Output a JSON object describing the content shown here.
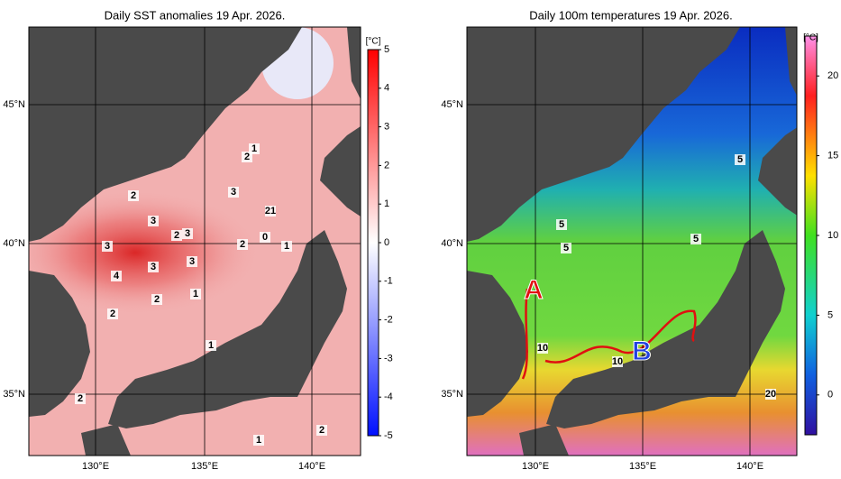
{
  "panels": [
    {
      "title": "Daily SST anomalies 19 Apr. 2026.",
      "lat_labels": [
        "45°N",
        "40°N",
        "35°N"
      ],
      "lon_labels": [
        "130°E",
        "135°E",
        "140°E"
      ],
      "colorbar": {
        "unit": "[°C]",
        "range": [
          -5,
          5
        ],
        "ticks": [
          5,
          4,
          3,
          2,
          1,
          0,
          -1,
          -2,
          -3,
          -4,
          -5
        ]
      },
      "contour_labels": [
        "1",
        "2",
        "2",
        "3",
        "21",
        "3",
        "2",
        "3",
        "3",
        "2",
        "0",
        "1",
        "4",
        "3",
        "3",
        "1",
        "2",
        "2",
        "1",
        "2",
        "2",
        "1"
      ]
    },
    {
      "title": "Daily 100m temperatures 19 Apr. 2026.",
      "lat_labels": [
        "45°N",
        "40°N",
        "35°N"
      ],
      "lon_labels": [
        "130°E",
        "135°E",
        "140°E"
      ],
      "colorbar": {
        "unit": "[°C]",
        "range": [
          -2.5,
          22.5
        ],
        "ticks": [
          20,
          15,
          10,
          5,
          0
        ]
      },
      "contour_labels": [
        "5",
        "5",
        "5",
        "5",
        "10",
        "10",
        "20"
      ],
      "markers": [
        "A",
        "B"
      ]
    }
  ]
}
